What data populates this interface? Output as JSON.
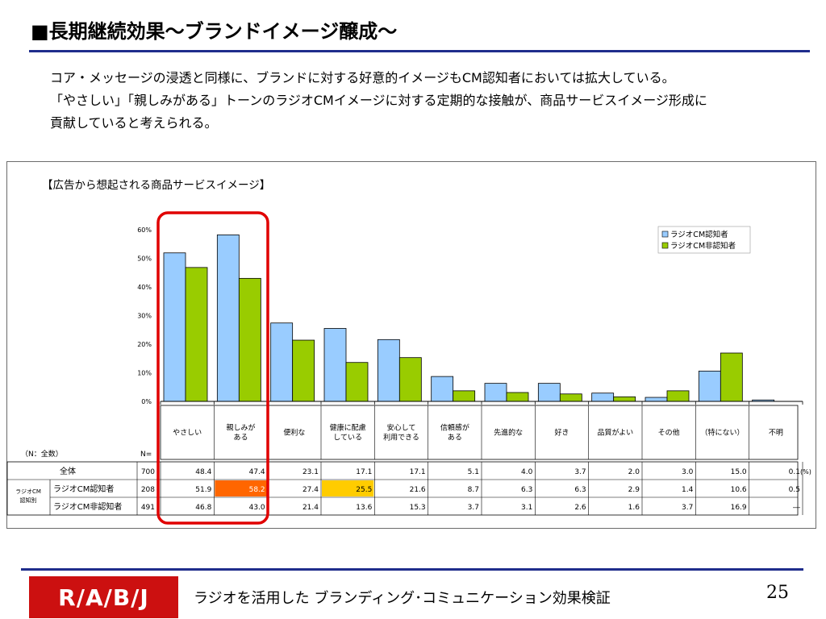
{
  "page": {
    "title": "■長期継続効果～ブランドイメージ醸成～",
    "intro_lines": [
      "コア・メッセージの浸透と同様に、ブランドに対する好意的イメージもCM認知者においては拡大している。",
      "「やさしい」「親しみがある」トーンのラジオCMイメージに対する定期的な接触が、商品サービスイメージ形成に",
      "貢献していると考えられる。"
    ],
    "footer_logo": "R/A/B/J",
    "footer_text": "ラジオを活用した  ブランディング･コミュニケーション効果検証",
    "page_number": "25"
  },
  "chart_data": {
    "type": "bar",
    "title": "【広告から想起される商品サービスイメージ】",
    "categories": [
      "やさしい",
      "親しみが\nある",
      "便利な",
      "健康に配慮\nしている",
      "安心して\n利用できる",
      "信頼感が\nある",
      "先進的な",
      "好き",
      "品質がよい",
      "その他",
      "（特にない）",
      "不明"
    ],
    "series": [
      {
        "name": "ラジオCM認知者",
        "color": "#99ccff",
        "values": [
          51.9,
          58.2,
          27.4,
          25.5,
          21.6,
          8.7,
          6.3,
          6.3,
          2.9,
          1.4,
          10.6,
          0.5
        ]
      },
      {
        "name": "ラジオCM非認知者",
        "color": "#99cc00",
        "values": [
          46.8,
          43.0,
          21.4,
          13.6,
          15.3,
          3.7,
          3.1,
          2.6,
          1.6,
          3.7,
          16.9,
          0
        ]
      }
    ],
    "ylim": [
      0,
      60
    ],
    "yticks": [
      "0%",
      "10%",
      "20%",
      "30%",
      "40%",
      "50%",
      "60%"
    ],
    "legend_position": "top-right",
    "highlight_box": "around やさしい and 親しみがある",
    "table": {
      "base_label": "（N：全数）",
      "n_label": "N=",
      "unit": "(%)",
      "group_label": "ラジオCM\n認知別",
      "rows": [
        {
          "label": "全体",
          "n": "700",
          "values": [
            "48.4",
            "47.4",
            "23.1",
            "17.1",
            "17.1",
            "5.1",
            "4.0",
            "3.7",
            "2.0",
            "3.0",
            "15.0",
            "0.1"
          ]
        },
        {
          "label": "ラジオCM認知者",
          "n": "208",
          "values": [
            "51.9",
            "58.2",
            "27.4",
            "25.5",
            "21.6",
            "8.7",
            "6.3",
            "6.3",
            "2.9",
            "1.4",
            "10.6",
            "0.5"
          ],
          "highlights": {
            "1": "#ff6600",
            "3": "#ffcc00"
          }
        },
        {
          "label": "ラジオCM非認知者",
          "n": "491",
          "values": [
            "46.8",
            "43.0",
            "21.4",
            "13.6",
            "15.3",
            "3.7",
            "3.1",
            "2.6",
            "1.6",
            "3.7",
            "16.9",
            "―"
          ]
        }
      ]
    }
  }
}
